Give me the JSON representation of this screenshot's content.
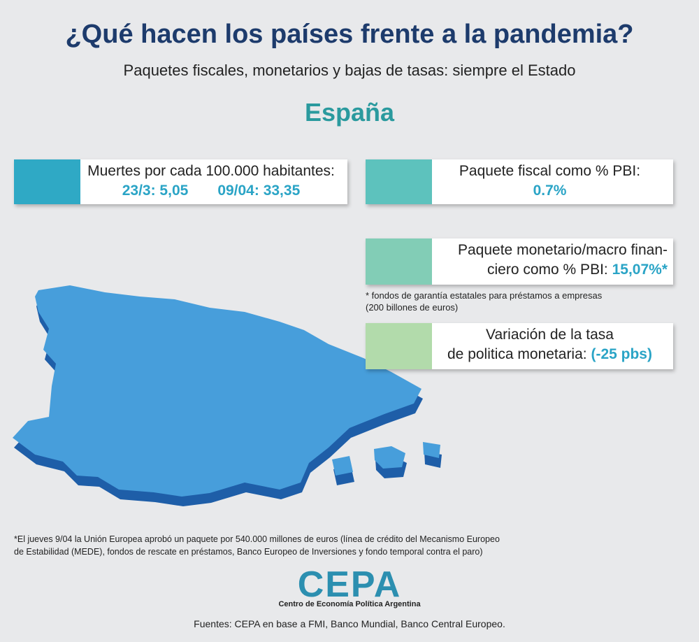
{
  "header": {
    "title": "¿Qué hacen los países frente a la pandemia?",
    "subtitle": "Paquetes fiscales, monetarios y bajas de tasas: siempre el Estado",
    "country": "España"
  },
  "cards": [
    {
      "label": "Muertes por cada 100.000 habitantes:",
      "values": [
        "23/3: 5,05",
        "09/04: 33,35"
      ]
    },
    {
      "label": "Paquete fiscal como % PBI:",
      "value": "0.7%"
    },
    {
      "label_lines": [
        "Paquete monetario/macro finan-",
        "ciero como % PBI:"
      ],
      "value": "15,07%*",
      "note_lines": [
        "* fondos de garantía estatales para préstamos a empresas",
        "(200 billones de euros)"
      ]
    },
    {
      "label_lines": [
        "Variación de la tasa",
        "de politica monetaria:"
      ],
      "value": "(-25 pbs)"
    }
  ],
  "footnote_lines": [
    "*El jueves 9/04 la Unión Europea aprobó un paquete por 540.000 millones de euros (línea de crédito del Mecanismo Europeo",
    "de Estabilidad (MEDE), fondos de rescate en préstamos, Banco Europeo de Inversiones y fondo temporal contra el paro)"
  ],
  "logo": {
    "name": "CEPA",
    "subtitle": "Centro de Economía Política Argentina"
  },
  "sources": "Fuentes: CEPA en base a FMI, Banco Mundial, Banco Central Europeo."
}
